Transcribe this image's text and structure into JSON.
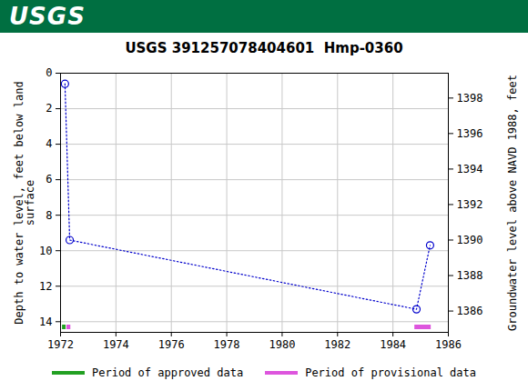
{
  "header": {
    "text": "USGS"
  },
  "chart_data": {
    "type": "line",
    "title": "USGS 391257078404601  Hmp-0360",
    "y_label": "Depth to water level, feet below land\nsurface",
    "y2_label": "Groundwater level above NAVD 1988, feet",
    "x": [
      1972.16,
      1972.33,
      1984.85,
      1985.34
    ],
    "series": [
      {
        "color": "#0000cc",
        "marker": "circle",
        "line_style": "dotted",
        "values": [
          0.6,
          9.4,
          13.3,
          9.7
        ]
      }
    ],
    "periods": [
      {
        "name": "Period of approved data",
        "color": "#22a022",
        "ranges": [
          [
            1972.07,
            1972.2
          ]
        ]
      },
      {
        "name": "Period of provisional data",
        "color": "#dd55dd",
        "ranges": [
          [
            1972.23,
            1972.37
          ],
          [
            1984.79,
            1985.38
          ]
        ]
      }
    ],
    "xlim": [
      1972,
      1986
    ],
    "xticks": [
      1972,
      1974,
      1976,
      1978,
      1980,
      1982,
      1984,
      1986
    ],
    "ylim": [
      0,
      14.6
    ],
    "yticks": [
      0,
      2,
      4,
      6,
      8,
      10,
      12,
      14
    ],
    "y2lim": [
      1399.4,
      1384.8
    ],
    "y2ticks": [
      1386,
      1388,
      1390,
      1392,
      1394,
      1396,
      1398
    ],
    "grid": true
  }
}
